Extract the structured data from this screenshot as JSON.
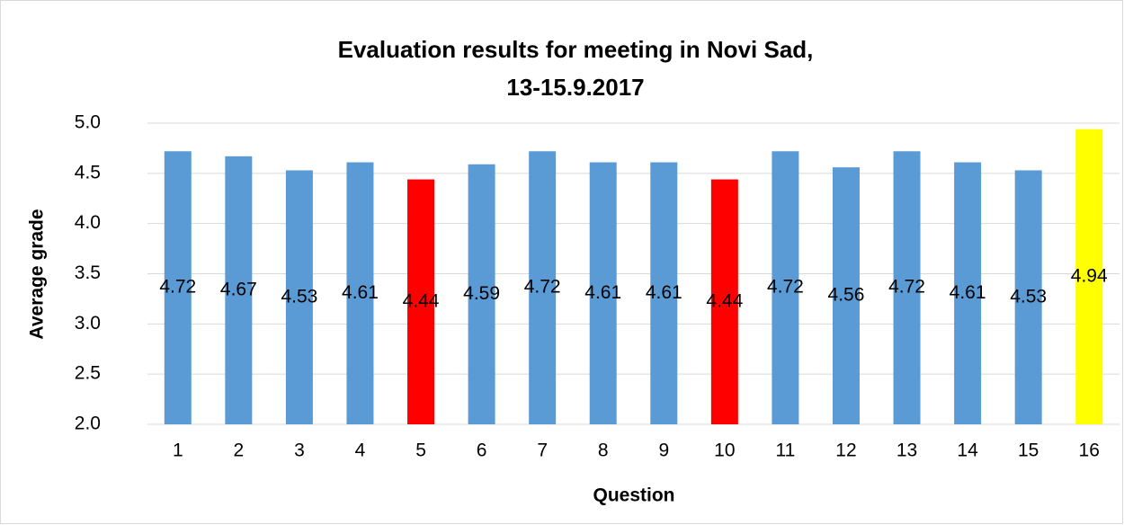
{
  "chart_data": {
    "type": "bar",
    "title": [
      "Evaluation results for meeting in Novi Sad,",
      "13-15.9.2017"
    ],
    "x_label": "Question",
    "y_label": "Average grade",
    "categories": [
      "1",
      "2",
      "3",
      "4",
      "5",
      "6",
      "7",
      "8",
      "9",
      "10",
      "11",
      "12",
      "13",
      "14",
      "15",
      "16"
    ],
    "values": [
      4.72,
      4.67,
      4.53,
      4.61,
      4.44,
      4.59,
      4.72,
      4.61,
      4.61,
      4.44,
      4.72,
      4.56,
      4.72,
      4.61,
      4.53,
      4.94
    ],
    "colors": [
      "#5b9bd5",
      "#5b9bd5",
      "#5b9bd5",
      "#5b9bd5",
      "#ff0000",
      "#5b9bd5",
      "#5b9bd5",
      "#5b9bd5",
      "#5b9bd5",
      "#ff0000",
      "#5b9bd5",
      "#5b9bd5",
      "#5b9bd5",
      "#5b9bd5",
      "#5b9bd5",
      "#ffff00"
    ],
    "ylim": [
      2,
      5
    ],
    "yticks": [
      {
        "value": 2,
        "label": "2.0"
      },
      2.5,
      {
        "value": 3,
        "label": "3.0"
      },
      3.5,
      {
        "value": 4,
        "label": "4.0"
      },
      4.5,
      {
        "value": 5,
        "label": "5.0"
      }
    ],
    "grid": true
  }
}
